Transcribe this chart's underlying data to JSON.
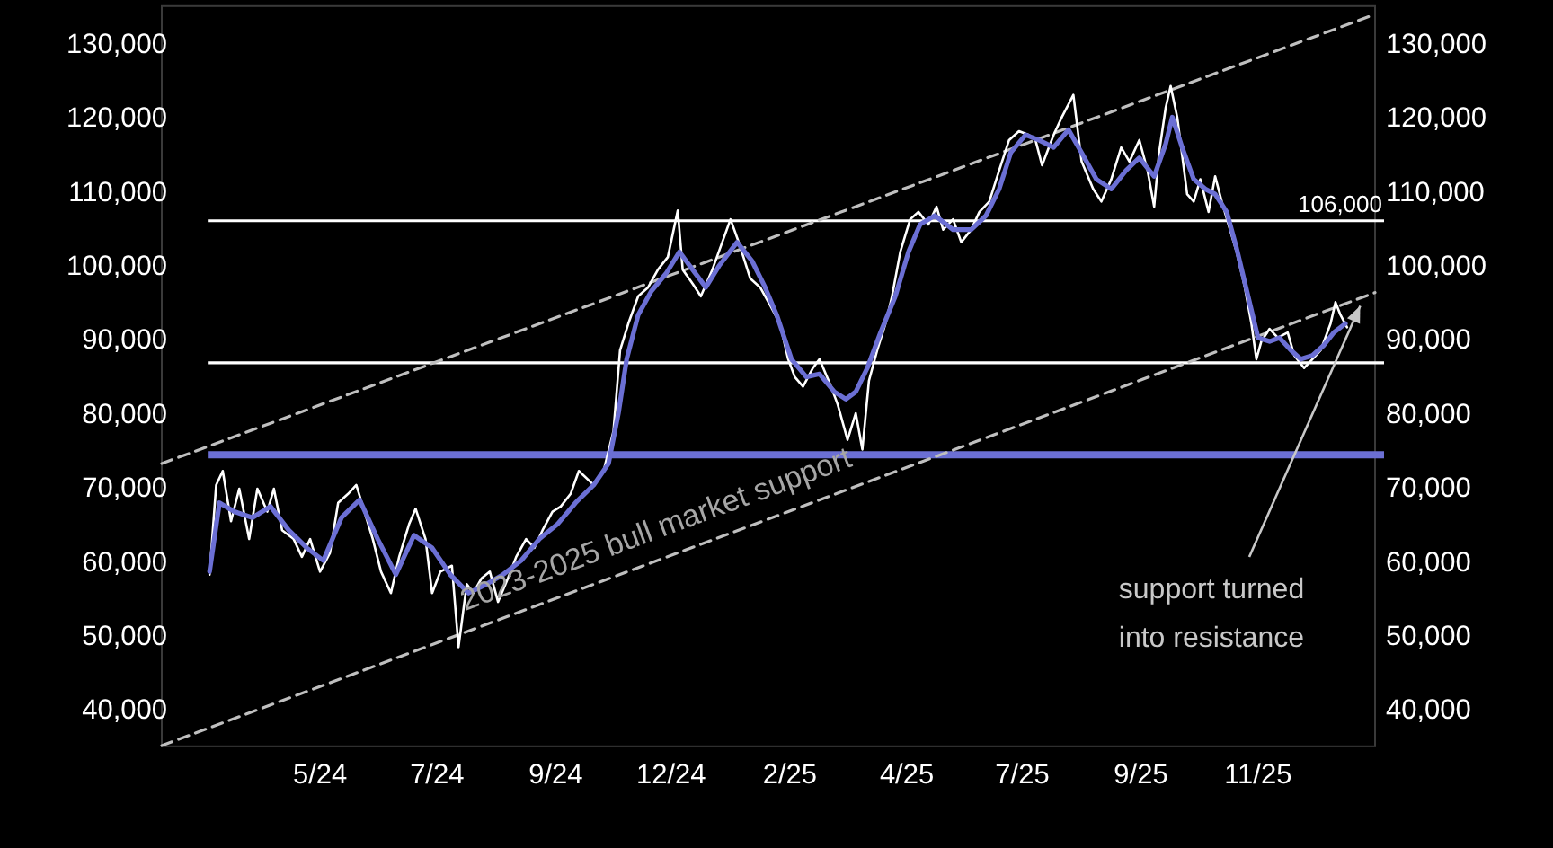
{
  "chart_data": {
    "type": "line",
    "xlim": [
      "2024-02-07",
      "2026-02-12"
    ],
    "xticks": [
      {
        "value": "2024-05-13",
        "label": "5/24"
      },
      {
        "value": "2024-07-23",
        "label": "7/24"
      },
      {
        "value": "2024-10-03",
        "label": "9/24"
      },
      {
        "value": "2024-12-12",
        "label": "12/24"
      },
      {
        "value": "2025-02-22",
        "label": "2/25"
      },
      {
        "value": "2025-05-04",
        "label": "4/25"
      },
      {
        "value": "2025-07-13",
        "label": "7/25"
      },
      {
        "value": "2025-09-23",
        "label": "9/25"
      },
      {
        "value": "2025-12-03",
        "label": "11/25"
      }
    ],
    "ylim": [
      35000,
      135000
    ],
    "yticks": [
      {
        "value": 40000,
        "label": "40,000"
      },
      {
        "value": 50000,
        "label": "50,000"
      },
      {
        "value": 60000,
        "label": "60,000"
      },
      {
        "value": 70000,
        "label": "70,000"
      },
      {
        "value": 80000,
        "label": "80,000"
      },
      {
        "value": 90000,
        "label": "90,000"
      },
      {
        "value": 100000,
        "label": "100,000"
      },
      {
        "value": 110000,
        "label": "110,000"
      },
      {
        "value": 120000,
        "label": "120,000"
      },
      {
        "value": 130000,
        "label": "130,000"
      }
    ],
    "y2lim": [
      35000,
      135000
    ],
    "y2ticks": [
      {
        "value": 40000,
        "label": "40,000"
      },
      {
        "value": 50000,
        "label": "50,000"
      },
      {
        "value": 60000,
        "label": "60,000"
      },
      {
        "value": 70000,
        "label": "70,000"
      },
      {
        "value": 80000,
        "label": "80,000"
      },
      {
        "value": 90000,
        "label": "90,000"
      },
      {
        "value": 100000,
        "label": "100,000"
      },
      {
        "value": 110000,
        "label": "110,000"
      },
      {
        "value": 120000,
        "label": "120,000"
      },
      {
        "value": 130000,
        "label": "130,000"
      }
    ],
    "grid": false,
    "series": [
      {
        "color": "#ffffff",
        "x": [
          "2024-03-07",
          "2024-03-11",
          "2024-03-15",
          "2024-03-20",
          "2024-03-25",
          "2024-03-31",
          "2024-04-05",
          "2024-04-11",
          "2024-04-15",
          "2024-04-20",
          "2024-04-27",
          "2024-05-02",
          "2024-05-07",
          "2024-05-13",
          "2024-05-19",
          "2024-05-24",
          "2024-05-30",
          "2024-06-04",
          "2024-06-08",
          "2024-06-14",
          "2024-06-19",
          "2024-06-25",
          "2024-06-30",
          "2024-07-06",
          "2024-07-10",
          "2024-07-16",
          "2024-07-20",
          "2024-07-25",
          "2024-08-01",
          "2024-08-05",
          "2024-08-10",
          "2024-08-14",
          "2024-08-19",
          "2024-08-24",
          "2024-08-29",
          "2024-09-04",
          "2024-09-09",
          "2024-09-15",
          "2024-09-20",
          "2024-09-25",
          "2024-10-01",
          "2024-10-06",
          "2024-10-12",
          "2024-10-17",
          "2024-10-26",
          "2024-11-01",
          "2024-11-07",
          "2024-11-11",
          "2024-11-16",
          "2024-11-22",
          "2024-11-28",
          "2024-12-04",
          "2024-12-10",
          "2024-12-16",
          "2024-12-19",
          "2024-12-25",
          "2024-12-30",
          "2025-01-06",
          "2025-01-12",
          "2025-01-17",
          "2025-01-22",
          "2025-01-29",
          "2025-02-04",
          "2025-02-10",
          "2025-02-16",
          "2025-02-21",
          "2025-02-25",
          "2025-03-02",
          "2025-03-08",
          "2025-03-12",
          "2025-03-19",
          "2025-03-23",
          "2025-03-29",
          "2025-04-03",
          "2025-04-07",
          "2025-04-11",
          "2025-04-16",
          "2025-04-21",
          "2025-04-25",
          "2025-04-30",
          "2025-05-06",
          "2025-05-11",
          "2025-05-17",
          "2025-05-22",
          "2025-05-26",
          "2025-06-01",
          "2025-06-06",
          "2025-06-12",
          "2025-06-17",
          "2025-06-23",
          "2025-06-29",
          "2025-07-05",
          "2025-07-11",
          "2025-07-17",
          "2025-07-21",
          "2025-07-25",
          "2025-08-01",
          "2025-08-06",
          "2025-08-13",
          "2025-08-18",
          "2025-08-25",
          "2025-08-30",
          "2025-09-05",
          "2025-09-11",
          "2025-09-16",
          "2025-09-22",
          "2025-09-27",
          "2025-10-01",
          "2025-10-04",
          "2025-10-08",
          "2025-10-11",
          "2025-10-15",
          "2025-10-21",
          "2025-10-25",
          "2025-10-29",
          "2025-11-03",
          "2025-11-07",
          "2025-11-11",
          "2025-11-16",
          "2025-11-20",
          "2025-11-25",
          "2025-11-29",
          "2025-12-02",
          "2025-12-05",
          "2025-12-10",
          "2025-12-15",
          "2025-12-21",
          "2025-12-25",
          "2025-12-31",
          "2026-01-05",
          "2026-01-10",
          "2026-01-16",
          "2026-01-19",
          "2026-01-22",
          "2026-01-26"
        ],
        "values": [
          58200,
          70300,
          72200,
          65400,
          69800,
          63000,
          69800,
          66700,
          69800,
          64200,
          63000,
          60600,
          63000,
          58600,
          61100,
          67900,
          69100,
          70300,
          67400,
          63000,
          58600,
          55700,
          60600,
          65000,
          67100,
          63000,
          55700,
          58600,
          59400,
          48400,
          56900,
          55700,
          57700,
          58600,
          54500,
          57700,
          60600,
          63000,
          61800,
          64200,
          66700,
          67400,
          69100,
          72200,
          70300,
          72200,
          77600,
          88500,
          92100,
          95800,
          97000,
          99400,
          101100,
          107400,
          99400,
          97500,
          95800,
          99400,
          103100,
          106200,
          103100,
          98200,
          97000,
          94600,
          92100,
          87300,
          84900,
          83600,
          86100,
          87300,
          83600,
          81200,
          76400,
          80000,
          75100,
          84400,
          88500,
          92100,
          95800,
          101800,
          106200,
          107200,
          105500,
          107900,
          104800,
          106200,
          103100,
          104800,
          107200,
          108600,
          112800,
          116900,
          118100,
          117600,
          116900,
          113500,
          117600,
          120000,
          123000,
          114000,
          110300,
          108600,
          111600,
          115900,
          114000,
          116900,
          112800,
          107900,
          115200,
          121300,
          124200,
          120000,
          109600,
          108600,
          111600,
          107200,
          112000,
          108600,
          104800,
          101800,
          97000,
          92100,
          87300,
          89700,
          91400,
          90200,
          90900,
          87800,
          86100,
          87300,
          88500,
          92100,
          95000,
          93300,
          91600
        ]
      },
      {
        "color": "#6b6fd4",
        "x": [
          "2024-03-07",
          "2024-03-13",
          "2024-03-22",
          "2024-04-02",
          "2024-04-13",
          "2024-04-24",
          "2024-05-05",
          "2024-05-15",
          "2024-05-26",
          "2024-06-06",
          "2024-06-17",
          "2024-06-28",
          "2024-07-09",
          "2024-07-20",
          "2024-07-31",
          "2024-08-11",
          "2024-08-22",
          "2024-09-01",
          "2024-09-12",
          "2024-09-23",
          "2024-10-04",
          "2024-10-15",
          "2024-10-26",
          "2024-11-04",
          "2024-11-10",
          "2024-11-15",
          "2024-11-22",
          "2024-11-30",
          "2024-12-09",
          "2024-12-17",
          "2024-12-25",
          "2025-01-02",
          "2025-01-10",
          "2025-01-21",
          "2025-01-30",
          "2025-02-07",
          "2025-02-14",
          "2025-02-23",
          "2025-03-04",
          "2025-03-12",
          "2025-03-21",
          "2025-03-28",
          "2025-04-03",
          "2025-04-10",
          "2025-04-18",
          "2025-04-27",
          "2025-05-05",
          "2025-05-12",
          "2025-05-21",
          "2025-06-01",
          "2025-06-12",
          "2025-06-21",
          "2025-06-29",
          "2025-07-06",
          "2025-07-15",
          "2025-07-23",
          "2025-08-01",
          "2025-08-10",
          "2025-08-18",
          "2025-08-27",
          "2025-09-05",
          "2025-09-14",
          "2025-09-22",
          "2025-10-01",
          "2025-10-08",
          "2025-10-12",
          "2025-10-18",
          "2025-10-25",
          "2025-11-01",
          "2025-11-07",
          "2025-11-14",
          "2025-11-20",
          "2025-11-27",
          "2025-12-03",
          "2025-12-10",
          "2025-12-16",
          "2025-12-23",
          "2025-12-29",
          "2026-01-05",
          "2026-01-12",
          "2026-01-18",
          "2026-01-25"
        ],
        "values": [
          58600,
          67900,
          66700,
          65900,
          67400,
          64200,
          61800,
          60100,
          65900,
          68300,
          63000,
          58200,
          63500,
          61800,
          58200,
          55700,
          56900,
          58200,
          60100,
          63000,
          65000,
          67900,
          70300,
          73200,
          80000,
          87300,
          93300,
          96500,
          98900,
          101800,
          99400,
          97000,
          99900,
          103100,
          100600,
          97000,
          93300,
          87300,
          84900,
          85300,
          82900,
          81900,
          82900,
          86100,
          90900,
          95800,
          101800,
          105500,
          106700,
          104800,
          104800,
          106700,
          110300,
          115200,
          117600,
          116900,
          115900,
          118300,
          115200,
          111600,
          110300,
          112800,
          114500,
          112000,
          116400,
          120000,
          115900,
          111600,
          110300,
          109600,
          107200,
          102300,
          95800,
          90200,
          89700,
          90200,
          88500,
          87300,
          87800,
          89200,
          90900,
          92100
        ]
      },
      {
        "color": "#bfbfbf",
        "line_style": "dashed",
        "x": [
          "2024-02-07",
          "2026-02-12"
        ],
        "values": [
          35100,
          96300
        ]
      },
      {
        "color": "#bfbfbf",
        "line_style": "dashed",
        "x": [
          "2024-02-07",
          "2026-02-12"
        ],
        "values": [
          73200,
          133900
        ]
      }
    ],
    "ref_lines": [
      {
        "axis": "y",
        "value": 106000,
        "label": "106,000",
        "color": "#ffffff"
      },
      {
        "axis": "y",
        "value": 86800,
        "color": "#ffffff"
      },
      {
        "axis": "y",
        "value": 74400,
        "color": "#6b6fd4"
      }
    ],
    "annotations": [
      "2023-2025 bull market support",
      {
        "text": "support turned into resistance",
        "x": "2026-02-03",
        "y": 94500
      }
    ]
  }
}
